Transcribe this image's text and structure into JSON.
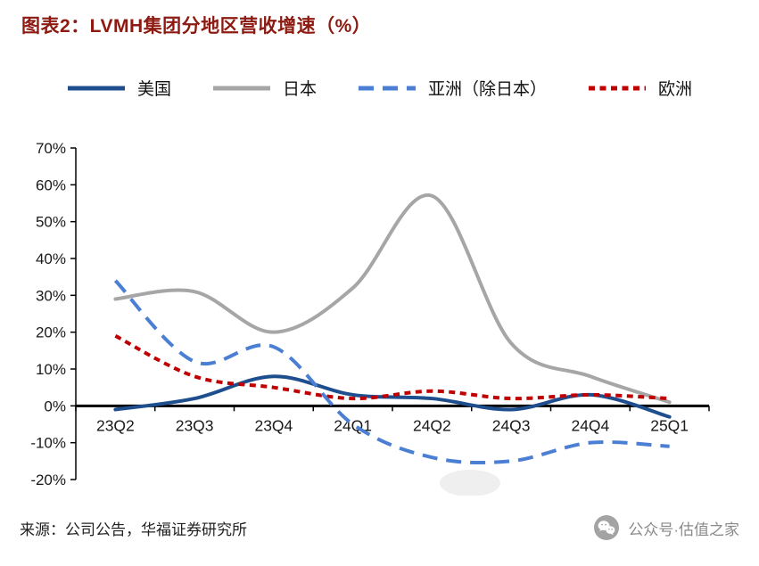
{
  "header": {
    "title": "图表2：LVMH集团分地区营收增速（%）"
  },
  "legend": [
    {
      "key": "us",
      "label": "美国",
      "color": "#1F4E8F",
      "line_style": "solid"
    },
    {
      "key": "japan",
      "label": "日本",
      "color": "#A6A6A6",
      "line_style": "solid"
    },
    {
      "key": "asia-ex-japan",
      "label": "亚洲（除日本）",
      "color": "#4A7FD4",
      "line_style": "dashed"
    },
    {
      "key": "europe",
      "label": "欧洲",
      "color": "#C00000",
      "line_style": "dotted"
    }
  ],
  "chart_data": {
    "type": "line",
    "title": "LVMH集团分地区营收增速（%）",
    "categories": [
      "23Q2",
      "23Q3",
      "23Q4",
      "24Q1",
      "24Q2",
      "24Q3",
      "24Q4",
      "25Q1"
    ],
    "series": [
      {
        "key": "us",
        "name": "美国",
        "color": "#1F4E8F",
        "line_style": "solid",
        "values": [
          -1,
          2,
          8,
          3,
          2,
          -1,
          3,
          -3
        ]
      },
      {
        "key": "japan",
        "name": "日本",
        "color": "#A6A6A6",
        "line_style": "solid",
        "values": [
          29,
          31,
          20,
          32,
          57,
          17,
          8,
          1
        ]
      },
      {
        "key": "asia-ex-japan",
        "name": "亚洲（除日本）",
        "color": "#4A7FD4",
        "line_style": "dashed",
        "values": [
          34,
          12,
          16,
          -5,
          -14,
          -15,
          -10,
          -11
        ]
      },
      {
        "key": "europe",
        "name": "欧洲",
        "color": "#C00000",
        "line_style": "dotted",
        "values": [
          19,
          8,
          5,
          2,
          4,
          2,
          3,
          2
        ]
      }
    ],
    "ylim": [
      -20,
      70
    ],
    "ytick_step": 10,
    "ytick_format": "percent",
    "grid": false,
    "legend_position": "top"
  },
  "footer": {
    "source": "来源：公司公告，华福证券研究所",
    "badge": {
      "icon": "wechat-icon",
      "text": "公众号·估值之家"
    }
  }
}
